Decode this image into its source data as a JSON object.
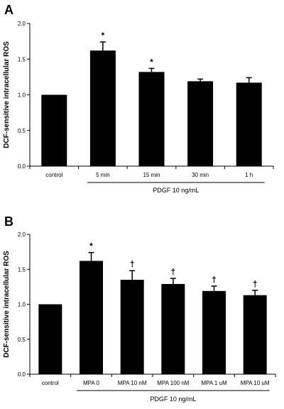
{
  "chart_data": [
    {
      "type": "bar",
      "panel": "A",
      "ylabel": "DCF-sensitive intracellular ROS",
      "xlabel": "",
      "ylim": [
        0,
        2.0
      ],
      "yticks": [
        "0.0",
        "0.5",
        "1.0",
        "1.5",
        "2.0"
      ],
      "categories": [
        "control",
        "5 min",
        "15 min",
        "30 min",
        "1 h"
      ],
      "values": [
        1.0,
        1.62,
        1.32,
        1.19,
        1.17
      ],
      "errors": [
        0,
        0.12,
        0.05,
        0.03,
        0.07
      ],
      "significance": [
        "",
        "*",
        "*",
        "",
        ""
      ],
      "group_label": "PDGF 10 ng/mL",
      "group_span": [
        1,
        4
      ],
      "bar_color": "#000000",
      "grid": false
    },
    {
      "type": "bar",
      "panel": "B",
      "ylabel": "DCF-sensitive intracellular ROS",
      "xlabel": "",
      "ylim": [
        0,
        2.0
      ],
      "yticks": [
        "0.0",
        "0.5",
        "1.0",
        "1.5",
        "2.0"
      ],
      "categories": [
        "control",
        "MPA 0",
        "MPA 10 nM",
        "MPA 100 nM",
        "MPA 1 uM",
        "MPA 10 uM"
      ],
      "values": [
        1.0,
        1.62,
        1.35,
        1.29,
        1.19,
        1.13
      ],
      "errors": [
        0,
        0.12,
        0.13,
        0.08,
        0.07,
        0.07
      ],
      "significance": [
        "",
        "*",
        "†",
        "†",
        "†",
        "†"
      ],
      "group_label": "PDGF 10 ng/mL",
      "group_span": [
        1,
        5
      ],
      "bar_color": "#000000",
      "grid": false
    }
  ]
}
